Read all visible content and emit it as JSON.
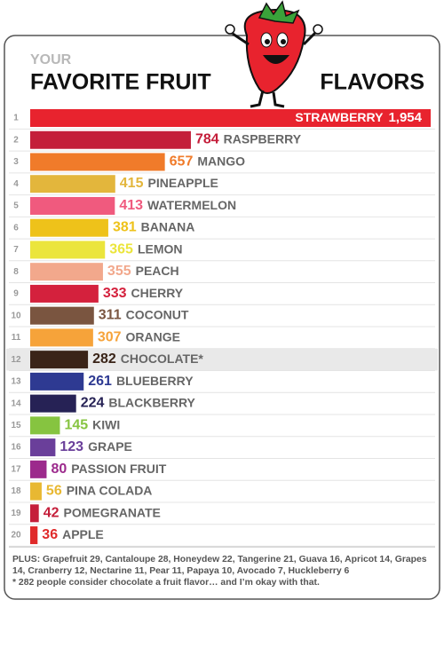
{
  "chart_data": {
    "type": "bar",
    "subtitle": "YOUR",
    "title": "FAVORITE FRUIT",
    "title_end": "FLAVORS",
    "ranks": [
      1,
      2,
      3,
      4,
      5,
      6,
      7,
      8,
      9,
      10,
      11,
      12,
      13,
      14,
      15,
      16,
      17,
      18,
      19,
      20
    ],
    "categories": [
      "STRAWBERRY",
      "RASPBERRY",
      "MANGO",
      "PINEAPPLE",
      "WATERMELON",
      "BANANA",
      "LEMON",
      "PEACH",
      "CHERRY",
      "COCONUT",
      "ORANGE",
      "CHOCOLATE*",
      "BLUEBERRY",
      "BLACKBERRY",
      "KIWI",
      "GRAPE",
      "PASSION FRUIT",
      "PINA COLADA",
      "POMEGRANATE",
      "APPLE"
    ],
    "values": [
      1954,
      784,
      657,
      415,
      413,
      381,
      365,
      355,
      333,
      311,
      307,
      282,
      261,
      224,
      145,
      123,
      80,
      56,
      42,
      36
    ],
    "value_labels": [
      "1,954",
      "784",
      "657",
      "415",
      "413",
      "381",
      "365",
      "355",
      "333",
      "311",
      "307",
      "282",
      "261",
      "224",
      "145",
      "123",
      "80",
      "56",
      "42",
      "36"
    ],
    "colors": [
      "#e8232e",
      "#c41e3a",
      "#f07b2a",
      "#e3b63c",
      "#f05a7e",
      "#eec21a",
      "#ebe53c",
      "#f2a88c",
      "#d4213d",
      "#7a5540",
      "#f6a33a",
      "#3a2418",
      "#2e3a92",
      "#262255",
      "#86c440",
      "#6a3f9a",
      "#9c2a8c",
      "#e8b832",
      "#c51e3a",
      "#e02a2a"
    ],
    "highlight_category": "CHOCOLATE*",
    "notes": [
      "PLUS: Grapefruit 29, Cantaloupe 28, Honeydew 22, Tangerine 21, Guava 16, Apricot 14, Grapes 14, Cranberry 12, Nectarine 11, Pear 11, Papaya 10, Avocado 7, Huckleberry 6",
      "* 282 people consider chocolate a fruit flavor… and I’m okay with that."
    ]
  }
}
